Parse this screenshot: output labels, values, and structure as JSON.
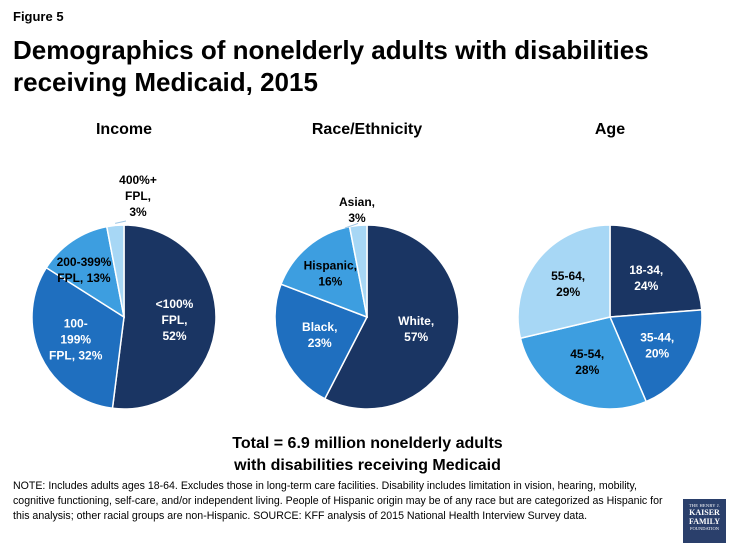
{
  "figure_label": "Figure 5",
  "title": "Demographics of nonelderly adults with disabilities receiving Medicaid, 2015",
  "total_line1": "Total = 6.9 million nonelderly adults",
  "total_line2": "with disabilities receiving Medicaid",
  "note": "NOTE:  Includes adults ages 18-64. Excludes those  in long-term care facilities. Disability includes limitation in vision, hearing, mobility, cognitive functioning, self-care, and/or independent  living. People of Hispanic origin may be of any race but are categorized as Hispanic for this analysis; other racial groups are non-Hispanic. SOURCE:  KFF analysis of 2015 National Health Interview Survey data.",
  "logo": {
    "line1": "THE HENRY J.",
    "line2": "KAISER",
    "line3": "FAMILY",
    "line4": "FOUNDATION"
  },
  "colors": {
    "dark_navy": "#1a3563",
    "blue": "#1f6fbf",
    "light_blue": "#3d9ee0",
    "pale_blue": "#a7d7f5"
  },
  "chart_data": [
    {
      "type": "pie",
      "title": "Income",
      "slices": [
        {
          "label": [
            "<100%",
            "FPL,",
            "52%"
          ],
          "value": 52,
          "color": "#1a3563",
          "text_color": "#ffffff"
        },
        {
          "label": [
            "100-",
            "199%",
            "FPL, 32%"
          ],
          "value": 32,
          "color": "#1f6fbf",
          "text_color": "#ffffff"
        },
        {
          "label": [
            "200-399%",
            "FPL, 13%"
          ],
          "value": 13,
          "color": "#3d9ee0",
          "text_color": "#000000"
        },
        {
          "label": [
            "400%+",
            "FPL,",
            "3%"
          ],
          "value": 3,
          "color": "#a7d7f5",
          "text_color": "#000000"
        }
      ]
    },
    {
      "type": "pie",
      "title": "Race/Ethnicity",
      "slices": [
        {
          "label": [
            "White,",
            "57%"
          ],
          "value": 57,
          "color": "#1a3563",
          "text_color": "#ffffff"
        },
        {
          "label": [
            "Black,",
            "23%"
          ],
          "value": 23,
          "color": "#1f6fbf",
          "text_color": "#ffffff"
        },
        {
          "label": [
            "Hispanic,",
            "16%"
          ],
          "value": 16,
          "color": "#3d9ee0",
          "text_color": "#000000"
        },
        {
          "label": [
            "Asian,",
            "3%"
          ],
          "value": 3,
          "color": "#a7d7f5",
          "text_color": "#000000"
        }
      ]
    },
    {
      "type": "pie",
      "title": "Age",
      "slices": [
        {
          "label": [
            "18-34,",
            "24%"
          ],
          "value": 24,
          "color": "#1a3563",
          "text_color": "#ffffff"
        },
        {
          "label": [
            "35-44,",
            "20%"
          ],
          "value": 20,
          "color": "#1f6fbf",
          "text_color": "#ffffff"
        },
        {
          "label": [
            "45-54,",
            "28%"
          ],
          "value": 28,
          "color": "#3d9ee0",
          "text_color": "#000000"
        },
        {
          "label": [
            "55-64,",
            "29%"
          ],
          "value": 29,
          "color": "#a7d7f5",
          "text_color": "#000000"
        }
      ]
    }
  ]
}
